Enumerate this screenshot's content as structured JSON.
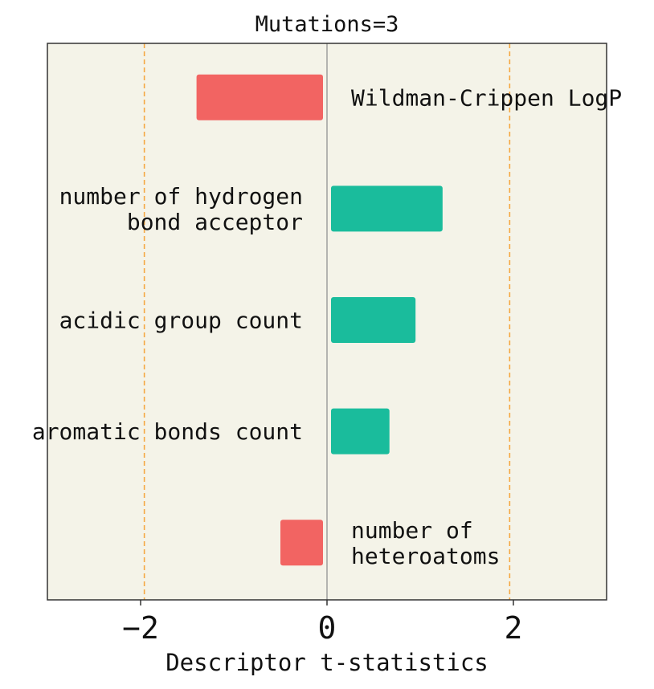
{
  "chart_data": {
    "type": "bar",
    "orientation": "horizontal",
    "title": "Mutations=3",
    "xlabel": "Descriptor t-statistics",
    "ylabel": "",
    "xlim": [
      -3,
      3
    ],
    "xticks": [
      {
        "value": -2,
        "label": "−2"
      },
      {
        "value": 0,
        "label": "0"
      },
      {
        "value": 2,
        "label": "2"
      }
    ],
    "reference_lines": [
      -1.96,
      1.96
    ],
    "zero_line": 0,
    "grid": false,
    "legend": "none",
    "categories": [
      {
        "name": "wildman-crippen-logp",
        "lines": [
          "Wildman-Crippen LogP"
        ],
        "value": -1.4
      },
      {
        "name": "hbond-acceptor",
        "lines": [
          "number of hydrogen",
          "bond acceptor"
        ],
        "value": 1.24
      },
      {
        "name": "acidic-group-count",
        "lines": [
          "acidic group count"
        ],
        "value": 0.95
      },
      {
        "name": "aromatic-bonds-count",
        "lines": [
          "aromatic bonds count"
        ],
        "value": 0.67
      },
      {
        "name": "heteroatoms",
        "lines": [
          "number of",
          "heteroatoms"
        ],
        "value": -0.5
      }
    ],
    "colors": {
      "positive": "#1abc9c",
      "negative": "#f26462",
      "background": "#f4f3e8",
      "reference_line": "#f5a742",
      "zero_line": "#8a8a8a",
      "frame": "#333333"
    }
  }
}
